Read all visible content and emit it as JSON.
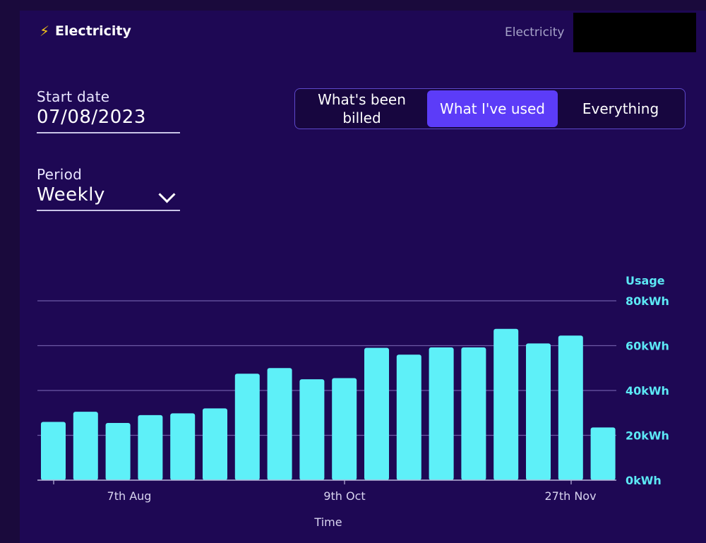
{
  "header": {
    "title": "Electricity",
    "right_label": "Electricity"
  },
  "filters": {
    "start_date_label": "Start date",
    "start_date_value": "07/08/2023",
    "period_label": "Period",
    "period_value": "Weekly"
  },
  "toggle": {
    "options": [
      "What's been billed",
      "What I've used",
      "Everything"
    ],
    "selected": "What I've used"
  },
  "colors": {
    "bar": "#5ef0f8",
    "accent": "#5c3cf8",
    "axis_text": "#5ce8f5",
    "background": "#1e0854"
  },
  "chart_data": {
    "type": "bar",
    "values": [
      26,
      30.5,
      25.5,
      29,
      29.8,
      32,
      47.5,
      50,
      45,
      45.5,
      59,
      56,
      59.2,
      59.2,
      67.5,
      61,
      64.5,
      23.5
    ],
    "xlabel": "Time",
    "ylabel": "Usage",
    "ylim": [
      0,
      80
    ],
    "yticks": [
      "0kWh",
      "20kWh",
      "40kWh",
      "60kWh",
      "80kWh"
    ],
    "xticks": [
      {
        "label": "7th Aug",
        "index": 2
      },
      {
        "label": "9th Oct",
        "index": 9
      },
      {
        "label": "27th Nov",
        "index": 16
      }
    ],
    "grid": true,
    "y_axis_side": "right"
  }
}
